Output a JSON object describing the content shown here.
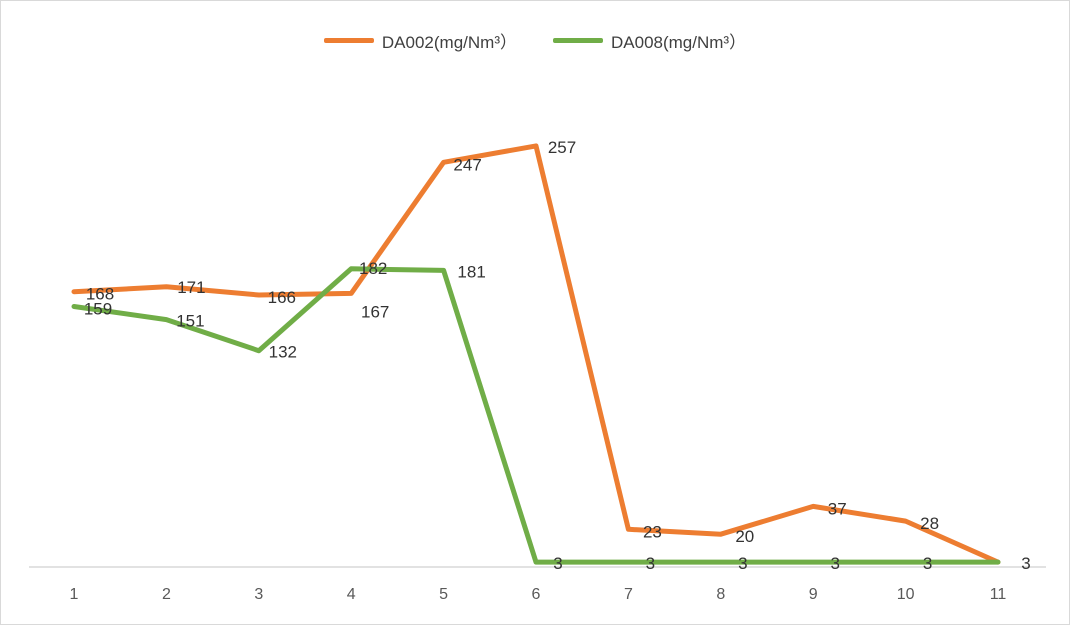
{
  "chart_data": {
    "type": "line",
    "categories": [
      "1",
      "2",
      "3",
      "4",
      "5",
      "6",
      "7",
      "8",
      "9",
      "10",
      "11"
    ],
    "series": [
      {
        "name": "DA002(mg/Nm³）",
        "color": "#ED7D31",
        "values": [
          168,
          171,
          166,
          167,
          247,
          257,
          23,
          20,
          37,
          28,
          3
        ],
        "labels": [
          "168",
          "171",
          "166",
          "167",
          "247",
          "257",
          "23",
          "20",
          "37",
          "28",
          "3"
        ]
      },
      {
        "name": "DA008(mg/Nm³）",
        "color": "#70AD47",
        "values": [
          159,
          151,
          132,
          182,
          181,
          3,
          3,
          3,
          3,
          3,
          3
        ],
        "labels": [
          "159",
          "151",
          "132",
          "182",
          "181",
          "3",
          "3",
          "3",
          "3",
          "3",
          "3"
        ]
      }
    ],
    "title": "",
    "xlabel": "",
    "ylabel": "",
    "ylim": [
      0,
      260
    ],
    "grid": false,
    "legend": "top-center",
    "axis_color": "#d9d9d9"
  }
}
